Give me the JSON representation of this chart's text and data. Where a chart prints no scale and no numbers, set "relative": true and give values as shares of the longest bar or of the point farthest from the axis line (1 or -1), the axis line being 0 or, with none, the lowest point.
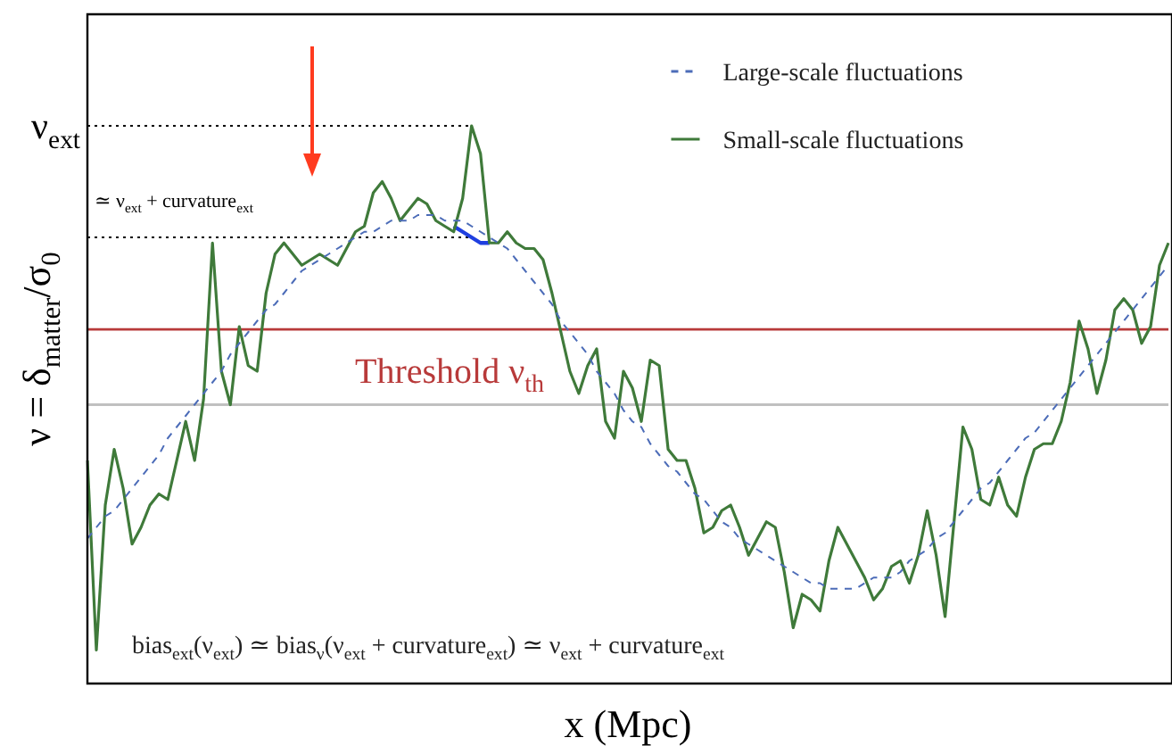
{
  "chart_data": {
    "type": "line",
    "relative": true,
    "marker": "none",
    "legend": "top right",
    "xlabel": "x (Mpc)",
    "ylabel": "ν = δ$_{matter}$/σ$_{0}$",
    "annotations": [
      "bias$_{ext}$(ν$_{ext}$) ≃ bias$_{ν}$(ν$_{ext}$ + curvature$_{ext}$) ≃ ν$_{ext}$ + curvature$_{ext}$"
    ],
    "categories": [
      null,
      null,
      null,
      null,
      null,
      null,
      null,
      null,
      null,
      null,
      null,
      null,
      null,
      null,
      null,
      null,
      null,
      null,
      null,
      null,
      null,
      null,
      null,
      null,
      null,
      null,
      null,
      null,
      null,
      null,
      null,
      null,
      null,
      null,
      null,
      null,
      null,
      null,
      null,
      null,
      null,
      null,
      null,
      null,
      null,
      null,
      null,
      null,
      null,
      null,
      null,
      null,
      null,
      null,
      null,
      null,
      null,
      null,
      null,
      null,
      null,
      null,
      null,
      null,
      null,
      null,
      null,
      null,
      null,
      null,
      null,
      null,
      null,
      null,
      null,
      null,
      null,
      null,
      null,
      null,
      null,
      null,
      null,
      null,
      null,
      null,
      null,
      null,
      null,
      null,
      null,
      null,
      null,
      null,
      null,
      null,
      null,
      null,
      null,
      null,
      null,
      null,
      null,
      null,
      null,
      null,
      null,
      null,
      null,
      null,
      null,
      null,
      null,
      null,
      null,
      null,
      null,
      null,
      null,
      null,
      null,
      null
    ],
    "series": [
      {
        "name": "Large-scale fluctuations",
        "color": "#4c6cb8",
        "line_style": "dashed",
        "values": [
          0.26,
          0.28,
          0.3,
          0.31,
          0.33,
          0.35,
          0.37,
          0.39,
          0.41,
          0.44,
          0.46,
          0.48,
          0.5,
          0.52,
          0.54,
          0.56,
          0.59,
          0.61,
          0.63,
          0.65,
          0.67,
          0.68,
          0.7,
          0.72,
          0.74,
          0.75,
          0.76,
          0.77,
          0.78,
          0.79,
          0.8,
          0.81,
          0.81,
          0.82,
          0.83,
          0.83,
          0.83,
          0.84,
          0.84,
          0.84,
          0.83,
          0.83,
          0.83,
          0.82,
          0.81,
          0.8,
          0.79,
          0.78,
          0.76,
          0.74,
          0.72,
          0.7,
          0.68,
          0.65,
          0.63,
          0.61,
          0.59,
          0.56,
          0.54,
          0.52,
          0.49,
          0.47,
          0.46,
          0.43,
          0.41,
          0.39,
          0.38,
          0.36,
          0.34,
          0.33,
          0.31,
          0.29,
          0.28,
          0.26,
          0.25,
          0.24,
          0.23,
          0.22,
          0.21,
          0.2,
          0.19,
          0.18,
          0.18,
          0.17,
          0.17,
          0.17,
          0.17,
          0.18,
          0.19,
          0.19,
          0.19,
          0.2,
          0.22,
          0.23,
          0.24,
          0.26,
          0.27,
          0.29,
          0.31,
          0.33,
          0.35,
          0.36,
          0.38,
          0.4,
          0.42,
          0.44,
          0.45,
          0.47,
          0.49,
          0.51,
          0.53,
          0.55,
          0.57,
          0.59,
          0.61,
          0.63,
          0.65,
          0.67,
          0.69,
          0.71,
          0.73,
          0.75
        ]
      },
      {
        "name": "Small-scale fluctuations",
        "color": "#3f7a3a",
        "line_style": "solid",
        "values": [
          0.4,
          0.06,
          0.32,
          0.42,
          0.35,
          0.25,
          0.28,
          0.32,
          0.34,
          0.33,
          0.4,
          0.47,
          0.4,
          0.51,
          0.79,
          0.56,
          0.5,
          0.64,
          0.57,
          0.56,
          0.7,
          0.77,
          0.79,
          0.77,
          0.75,
          0.76,
          0.77,
          0.76,
          0.75,
          0.78,
          0.81,
          0.82,
          0.88,
          0.9,
          0.87,
          0.83,
          0.85,
          0.87,
          0.86,
          0.83,
          0.82,
          0.81,
          0.87,
          1,
          0.95,
          0.79,
          0.79,
          0.81,
          0.79,
          0.78,
          0.78,
          0.76,
          0.7,
          0.63,
          0.56,
          0.52,
          0.57,
          0.6,
          0.47,
          0.44,
          0.56,
          0.53,
          0.47,
          0.58,
          0.57,
          0.42,
          0.4,
          0.4,
          0.35,
          0.27,
          0.28,
          0.31,
          0.32,
          0.28,
          0.23,
          0.26,
          0.29,
          0.28,
          0.2,
          0.1,
          0.16,
          0.15,
          0.13,
          0.22,
          0.28,
          0.25,
          0.22,
          0.19,
          0.15,
          0.17,
          0.21,
          0.22,
          0.18,
          0.23,
          0.31,
          0.23,
          0.12,
          0.29,
          0.46,
          0.42,
          0.33,
          0.32,
          0.37,
          0.32,
          0.3,
          0.37,
          0.42,
          0.43,
          0.43,
          0.47,
          0.54,
          0.65,
          0.6,
          0.52,
          0.58,
          0.67,
          0.69,
          0.67,
          0.61,
          0.64,
          0.75,
          0.79
        ]
      },
      {
        "color": "#1f3fe0",
        "line_style": "solid",
        "values": [
          null,
          null,
          null,
          null,
          null,
          null,
          null,
          null,
          null,
          null,
          null,
          null,
          null,
          null,
          null,
          null,
          null,
          null,
          null,
          null,
          null,
          null,
          null,
          null,
          null,
          null,
          null,
          null,
          null,
          null,
          null,
          null,
          null,
          null,
          null,
          null,
          null,
          null,
          null,
          null,
          null,
          0.82,
          0.81,
          0.8,
          0.79,
          0.79,
          null,
          null,
          null,
          null,
          null,
          null,
          null,
          null,
          null,
          null,
          null,
          null,
          null,
          null,
          null,
          null,
          null,
          null,
          null,
          null,
          null,
          null,
          null,
          null,
          null,
          null,
          null,
          null,
          null,
          null,
          null,
          null,
          null,
          null,
          null,
          null,
          null,
          null,
          null,
          null,
          null,
          null,
          null,
          null,
          null,
          null,
          null,
          null,
          null,
          null,
          null,
          null,
          null,
          null,
          null,
          null,
          null,
          null,
          null,
          null,
          null,
          null,
          null,
          null,
          null,
          null,
          null,
          null,
          null,
          null,
          null,
          null,
          null,
          null,
          null,
          null
        ]
      }
    ],
    "ref_lines": [
      {
        "axis": "y",
        "value": 1,
        "label": "ν$_{ext}$",
        "color": "#000000",
        "line_style": "dotted"
      },
      {
        "axis": "y",
        "value": 0.8,
        "label": "≃ ν$_{ext}$ + curvature$_{ext}$",
        "color": "#000000",
        "line_style": "dotted"
      },
      {
        "axis": "y",
        "value": 0.635,
        "label": "Threshold ν$_{th}$",
        "color": "#b83a3a",
        "line_style": "solid"
      },
      {
        "axis": "y",
        "value": 0.5,
        "color": "#c0c0c0",
        "line_style": "solid"
      }
    ]
  }
}
